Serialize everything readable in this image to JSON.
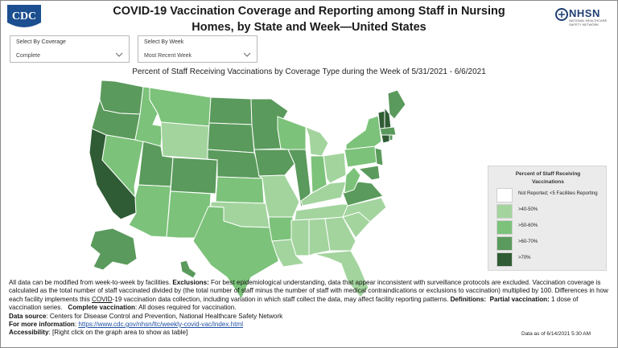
{
  "header": {
    "cdc_logo_text": "CDC",
    "title_line1": "COVID-19 Vaccination Coverage and Reporting among Staff in Nursing",
    "title_line2": "Homes, by State and Week—United States",
    "nhsn_logo_text": "NHSN",
    "nhsn_logo_subtext": "NATIONAL HEALTHCARE SAFETY NETWORK"
  },
  "filters": [
    {
      "label": "Select By Coverage",
      "value": "Complete",
      "icon": "chevron-down-icon"
    },
    {
      "label": "Select By Week",
      "value": "Most Recent Week",
      "icon": "chevron-down-icon"
    }
  ],
  "map": {
    "title": "Percent of Staff Receiving Vaccinations by Coverage Type during the Week of 5/31/2021 - 6/6/2021"
  },
  "legend": {
    "title_line1": "Percent of Staff Receiving",
    "title_line2": "Vaccinations",
    "items": [
      {
        "label": "Not Reported; <5 Facilities Reporting",
        "color": "#ffffff"
      },
      {
        "label": ">40-50%",
        "color": "#a3d49e"
      },
      {
        "label": ">50-60%",
        "color": "#7cc27a"
      },
      {
        "label": ">60-70%",
        "color": "#5a9a5c"
      },
      {
        "label": ">70%",
        "color": "#2f5c34"
      }
    ]
  },
  "colors": {
    "lvl40": "#a3d49e",
    "lvl50": "#7cc27a",
    "lvl60": "#5a9a5c",
    "lvl70": "#2f5c34",
    "link": "#1f4fa3"
  },
  "notes": {
    "p1_lead": "All data can be modified from week-to-week by facilities. ",
    "p1_exclusions_label": "Exclusions:",
    "p1_exclusions_text": " For best epidemiological understanding, data that appear inconsistent with surveillance protocols are excluded. Vaccination coverage is calculated as the total number of staff vaccinated divided by (the total number of staff minus the number of staff with medical contraindications or exclusions to vaccination) multiplied by 100. Differences in how each facility implements this ",
    "p1_covid_word": "COVID",
    "p1_tail": "-19 vaccination data collection, including variation in which staff collect the data, may affect facility reporting patterns. ",
    "definitions_label": "Definitions:",
    "partial_label": "Partial vaccination:",
    "partial_text": " 1 dose of vaccination series.",
    "complete_label": "Complete vaccination",
    "complete_text": ":  All doses required for vaccination.",
    "source_label": "Data source",
    "source_text": ": Centers for Disease Control and Prevention, National Healthcare Safety Network",
    "more_info_label": "For more information",
    "more_info_sep": ": ",
    "more_info_link": "https://www.cdc.gov/nhsn/ltc/weekly-covid-vac/index.html",
    "accessibility_label": "Accessibility",
    "accessibility_text": ": [Right click on the graph area to show as table]",
    "data_as_of": "Data as of 6/14/2021 5:30 AM"
  }
}
